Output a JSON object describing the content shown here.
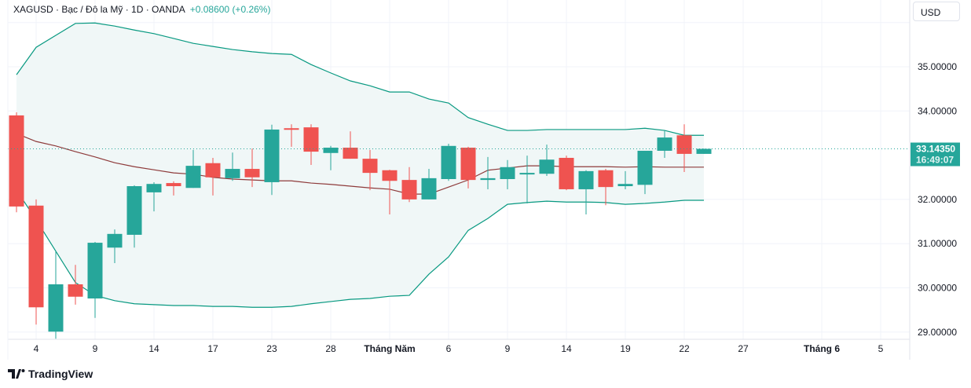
{
  "header": {
    "symbol_line": "XAGUSD · Bạc / Đô la Mỹ · 1D · OANDA",
    "change": "+0.08600 (+0.26%)"
  },
  "currency_button": "USD",
  "last_price": {
    "value": "33.14350",
    "countdown": "16:49:07"
  },
  "branding": "TradingView",
  "colors": {
    "up": "#26a69a",
    "down": "#ef5350",
    "band": "#089981",
    "basis": "#8e3b3b",
    "fill": "#f0f7f7"
  },
  "chart_data": {
    "type": "candlestick",
    "title": "XAGUSD · Bạc / Đô la Mỹ · 1D · OANDA",
    "ylim": [
      28.8,
      36.06
    ],
    "yticks": [
      "35.00000",
      "34.00000",
      "32.00000",
      "31.00000",
      "30.00000",
      "29.00000"
    ],
    "ytick_values": [
      35,
      34,
      32,
      31,
      30,
      29
    ],
    "xticks": [
      {
        "i": 1,
        "label": "4"
      },
      {
        "i": 4,
        "label": "9"
      },
      {
        "i": 7,
        "label": "14"
      },
      {
        "i": 10,
        "label": "17"
      },
      {
        "i": 13,
        "label": "23"
      },
      {
        "i": 16,
        "label": "28"
      },
      {
        "i": 19,
        "label": "Tháng Năm",
        "bold": true
      },
      {
        "i": 22,
        "label": "6"
      },
      {
        "i": 25,
        "label": "9"
      },
      {
        "i": 28,
        "label": "14"
      },
      {
        "i": 31,
        "label": "19"
      },
      {
        "i": 34,
        "label": "22"
      },
      {
        "i": 37,
        "label": "27"
      },
      {
        "i": 41,
        "label": "Tháng 6",
        "bold": true
      },
      {
        "i": 44,
        "label": "5"
      }
    ],
    "ohlc": [
      [
        33.9,
        33.97,
        31.71,
        31.84
      ],
      [
        31.86,
        32.0,
        29.17,
        29.56
      ],
      [
        29.01,
        30.83,
        28.85,
        30.08
      ],
      [
        30.08,
        30.52,
        29.62,
        29.8
      ],
      [
        29.76,
        31.04,
        29.32,
        31.02
      ],
      [
        30.91,
        31.32,
        30.56,
        31.22
      ],
      [
        31.2,
        32.32,
        30.91,
        32.3
      ],
      [
        32.16,
        32.39,
        31.73,
        32.35
      ],
      [
        32.37,
        32.41,
        32.09,
        32.3
      ],
      [
        32.26,
        33.12,
        32.26,
        32.76
      ],
      [
        32.82,
        32.94,
        32.09,
        32.5
      ],
      [
        32.48,
        33.06,
        32.42,
        32.69
      ],
      [
        32.69,
        33.15,
        32.28,
        32.5
      ],
      [
        32.39,
        33.69,
        32.1,
        33.58
      ],
      [
        33.61,
        33.7,
        33.19,
        33.58
      ],
      [
        33.63,
        33.7,
        32.78,
        33.08
      ],
      [
        33.05,
        33.21,
        32.66,
        33.17
      ],
      [
        33.17,
        33.54,
        32.92,
        32.92
      ],
      [
        32.92,
        33.12,
        32.21,
        32.6
      ],
      [
        32.66,
        32.67,
        31.66,
        32.42
      ],
      [
        32.44,
        32.73,
        31.94,
        32.0
      ],
      [
        32.0,
        32.69,
        32.0,
        32.48
      ],
      [
        32.46,
        33.26,
        32.42,
        33.21
      ],
      [
        33.17,
        33.19,
        32.25,
        32.44
      ],
      [
        32.44,
        32.96,
        32.23,
        32.48
      ],
      [
        32.46,
        32.89,
        32.23,
        32.73
      ],
      [
        32.58,
        32.99,
        31.91,
        32.6
      ],
      [
        32.58,
        33.24,
        32.53,
        32.9
      ],
      [
        32.94,
        32.99,
        32.21,
        32.23
      ],
      [
        32.23,
        32.66,
        31.66,
        32.64
      ],
      [
        32.66,
        32.69,
        31.87,
        32.28
      ],
      [
        32.3,
        32.64,
        32.23,
        32.35
      ],
      [
        32.33,
        33.1,
        32.12,
        33.1
      ],
      [
        33.1,
        33.56,
        32.94,
        33.4
      ],
      [
        33.45,
        33.7,
        32.62,
        33.03
      ],
      [
        33.03,
        33.15,
        33.03,
        33.1435
      ]
    ],
    "bollinger": {
      "upper": [
        34.82,
        35.44,
        35.71,
        35.98,
        35.99,
        35.92,
        35.83,
        35.75,
        35.64,
        35.53,
        35.46,
        35.39,
        35.34,
        35.3,
        35.28,
        35.05,
        34.86,
        34.68,
        34.57,
        34.43,
        34.43,
        34.27,
        34.18,
        33.85,
        33.7,
        33.56,
        33.56,
        33.58,
        33.58,
        33.58,
        33.58,
        33.58,
        33.61,
        33.56,
        33.45,
        33.45
      ],
      "basis": [
        33.49,
        33.31,
        33.21,
        33.08,
        32.96,
        32.83,
        32.74,
        32.67,
        32.6,
        32.57,
        32.5,
        32.46,
        32.44,
        32.42,
        32.42,
        32.37,
        32.34,
        32.3,
        32.26,
        32.23,
        32.12,
        32.12,
        32.28,
        32.44,
        32.66,
        32.71,
        32.76,
        32.76,
        32.74,
        32.74,
        32.74,
        32.73,
        32.74,
        32.73,
        32.73,
        32.73
      ],
      "lower": [
        32.21,
        31.54,
        30.83,
        30.12,
        29.83,
        29.71,
        29.64,
        29.62,
        29.6,
        29.6,
        29.58,
        29.58,
        29.56,
        29.56,
        29.58,
        29.64,
        29.69,
        29.74,
        29.76,
        29.81,
        29.83,
        30.31,
        30.7,
        31.3,
        31.57,
        31.89,
        31.93,
        31.96,
        31.94,
        31.94,
        31.93,
        31.89,
        31.91,
        31.94,
        31.98,
        31.98
      ]
    },
    "last": 33.1435
  }
}
